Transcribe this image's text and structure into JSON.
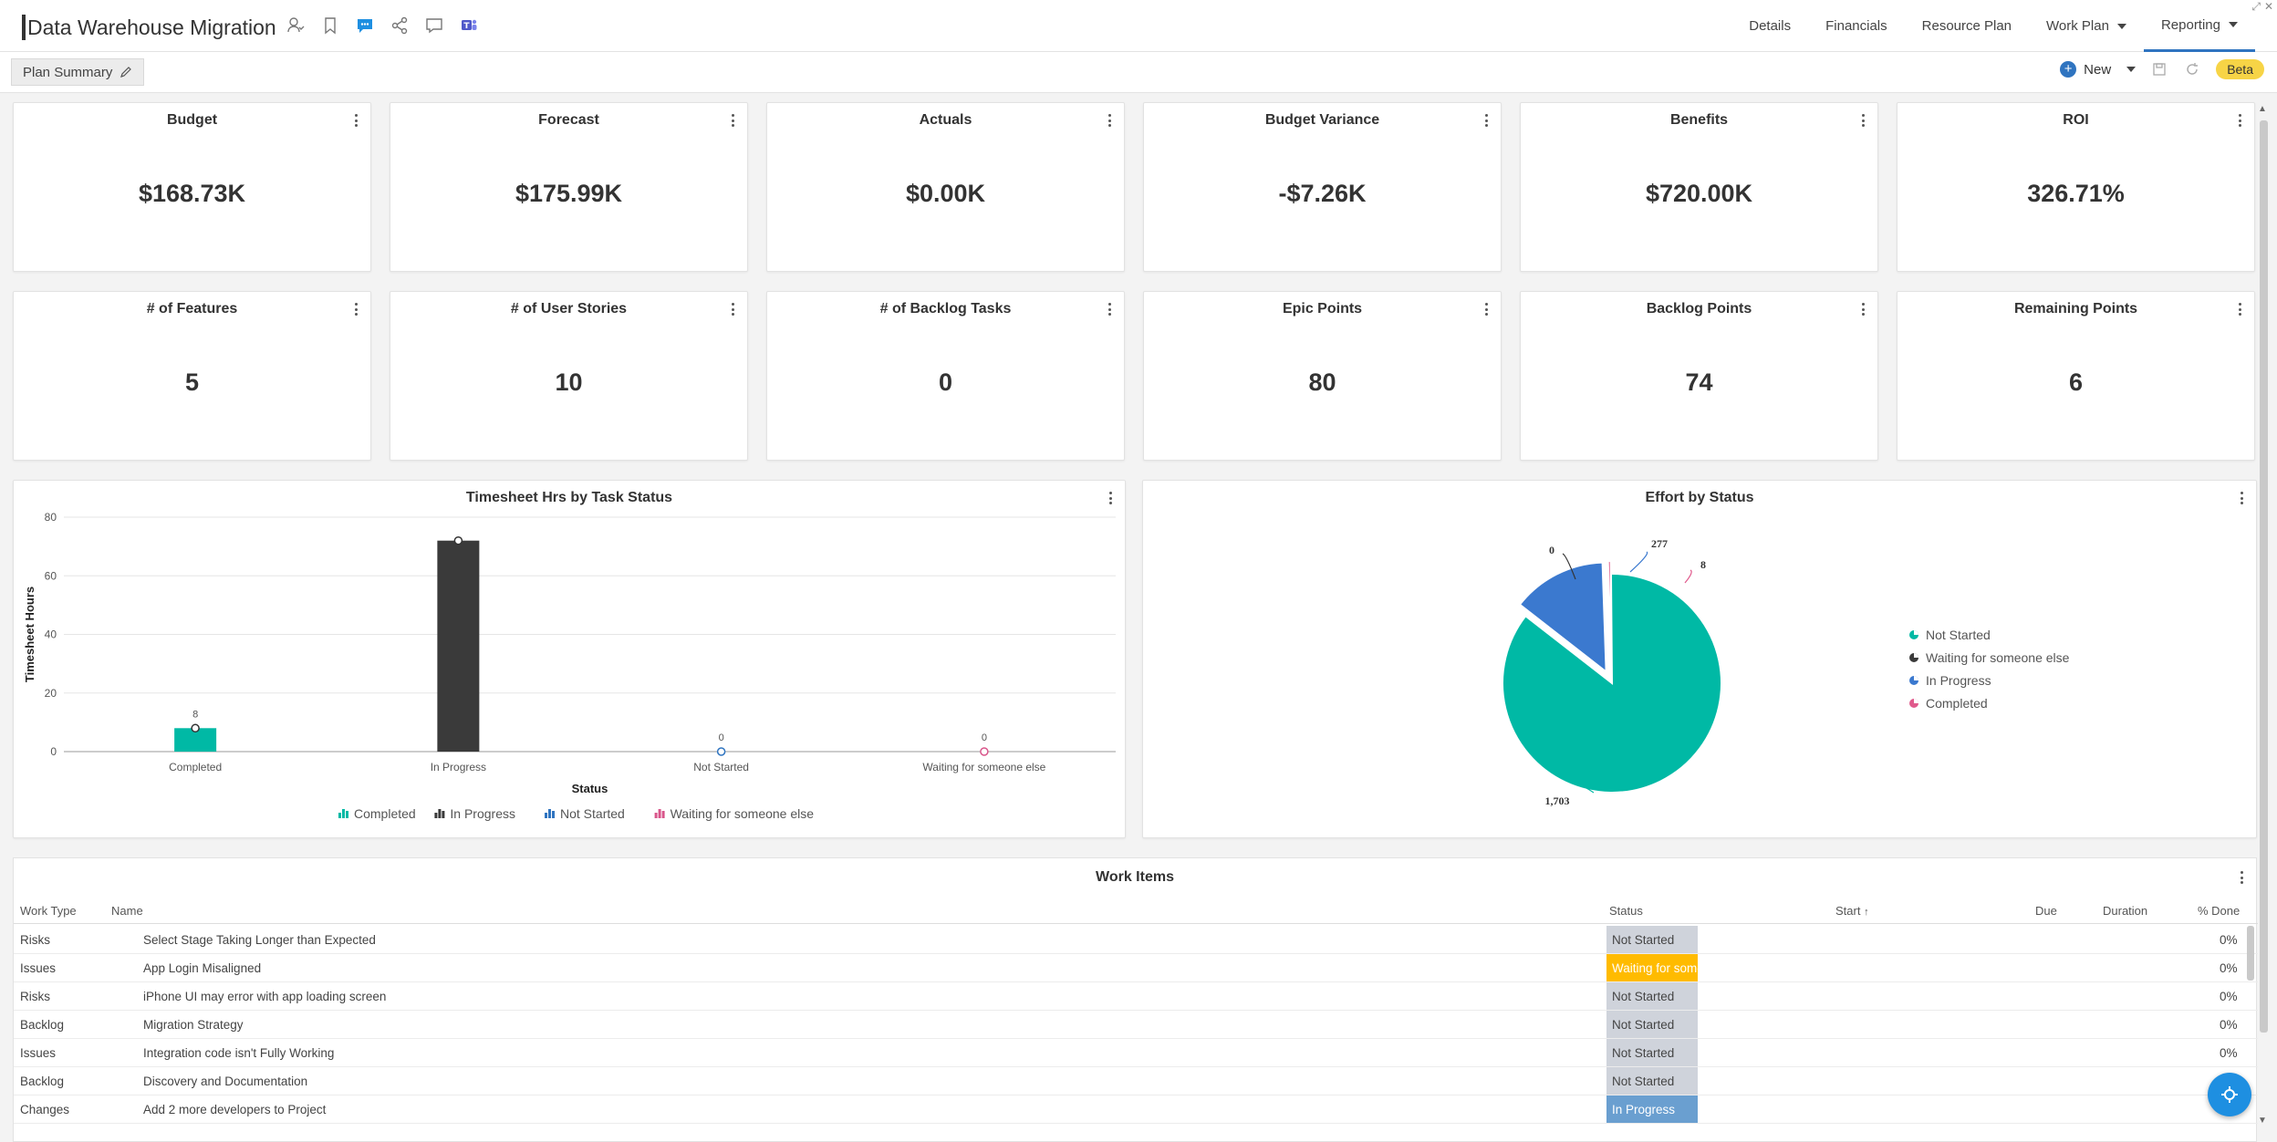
{
  "header": {
    "title": "Data Warehouse Migration",
    "nav_tabs": [
      "Details",
      "Financials",
      "Resource Plan",
      "Work Plan",
      "Reporting"
    ]
  },
  "toolbar": {
    "plan_summary": "Plan Summary",
    "new_label": "New",
    "beta_label": "Beta"
  },
  "kpis_row1": [
    {
      "title": "Budget",
      "value": "$168.73K"
    },
    {
      "title": "Forecast",
      "value": "$175.99K"
    },
    {
      "title": "Actuals",
      "value": "$0.00K"
    },
    {
      "title": "Budget Variance",
      "value": "-$7.26K"
    },
    {
      "title": "Benefits",
      "value": "$720.00K"
    },
    {
      "title": "ROI",
      "value": "326.71%"
    }
  ],
  "kpis_row2": [
    {
      "title": "# of Features",
      "value": "5"
    },
    {
      "title": "# of User Stories",
      "value": "10"
    },
    {
      "title": "# of Backlog Tasks",
      "value": "0"
    },
    {
      "title": "Epic Points",
      "value": "80"
    },
    {
      "title": "Backlog Points",
      "value": "74"
    },
    {
      "title": "Remaining Points",
      "value": "6"
    }
  ],
  "chart_data": [
    {
      "type": "bar",
      "title": "Timesheet Hrs by Task Status",
      "xlabel": "Status",
      "ylabel": "Timesheet Hours",
      "ylim": [
        0,
        80
      ],
      "yticks": [
        "0",
        "20",
        "40",
        "60",
        "80"
      ],
      "categories": [
        "Completed",
        "In Progress",
        "Not Started",
        "Waiting for someone else"
      ],
      "series": [
        {
          "name": "Completed",
          "color": "#00b9a5",
          "values": [
            8,
            null,
            null,
            null
          ]
        },
        {
          "name": "In Progress",
          "color": "#3a3a3a",
          "values": [
            null,
            72,
            null,
            null
          ]
        },
        {
          "name": "Not Started",
          "color": "#2f74c0",
          "values": [
            null,
            null,
            0,
            null
          ]
        },
        {
          "name": "Waiting for someone else",
          "color": "#d9568b",
          "values": [
            null,
            null,
            null,
            0
          ]
        }
      ],
      "data_labels": [
        "8",
        "",
        "0",
        "0"
      ]
    },
    {
      "type": "pie",
      "title": "Effort by Status",
      "slices": [
        {
          "name": "Not Started",
          "value": 1703,
          "label": "1,703",
          "color": "#00b9a5"
        },
        {
          "name": "Waiting for someone else",
          "value": 0,
          "label": "0",
          "color": "#3a3a3a"
        },
        {
          "name": "In Progress",
          "value": 277,
          "label": "277",
          "color": "#3b79cf"
        },
        {
          "name": "Completed",
          "value": 8,
          "label": "8",
          "color": "#e05a8c"
        }
      ],
      "legend": "right"
    }
  ],
  "table": {
    "title": "Work Items",
    "columns": [
      "Work Type",
      "Name",
      "Status",
      "Start",
      "Due",
      "Duration",
      "% Done"
    ],
    "rows": [
      {
        "type": "Risks",
        "name": "Select Stage Taking Longer than Expected",
        "status": "Not Started",
        "done": "0%"
      },
      {
        "type": "Issues",
        "name": "App Login Misaligned",
        "status": "Waiting for someone else",
        "done": "0%"
      },
      {
        "type": "Risks",
        "name": "iPhone UI may error with app loading screen",
        "status": "Not Started",
        "done": "0%"
      },
      {
        "type": "Backlog",
        "name": "Migration Strategy",
        "status": "Not Started",
        "done": "0%"
      },
      {
        "type": "Issues",
        "name": "Integration code isn't Fully Working",
        "status": "Not Started",
        "done": "0%"
      },
      {
        "type": "Backlog",
        "name": "Discovery and Documentation",
        "status": "Not Started",
        "done": "0%"
      },
      {
        "type": "Changes",
        "name": "Add 2 more developers to Project",
        "status": "In Progress",
        "done": "0%"
      }
    ]
  },
  "status_colors": {
    "Not Started": "#cfd3db",
    "Waiting for someone else": "#ffbb00",
    "In Progress": "#6a9fd0"
  }
}
